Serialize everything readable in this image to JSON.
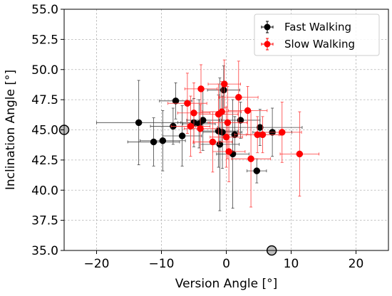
{
  "chart_data": {
    "type": "scatter",
    "title": "",
    "xlabel": "Version Angle [°]",
    "ylabel": "Inclination Angle [°]",
    "xlim": [
      -25,
      25
    ],
    "ylim": [
      35,
      55
    ],
    "xticks": [
      -20,
      -10,
      0,
      10,
      20
    ],
    "yticks": [
      35.0,
      37.5,
      40.0,
      42.5,
      45.0,
      47.5,
      50.0,
      52.5,
      55.0
    ],
    "xtick_labels": [
      "−20",
      "−10",
      "0",
      "10",
      "20"
    ],
    "ytick_labels": [
      "35.0",
      "37.5",
      "40.0",
      "42.5",
      "45.0",
      "47.5",
      "50.0",
      "52.5",
      "55.0"
    ],
    "grid": true,
    "legend_position": "top-right",
    "reference_points": [
      {
        "x": -25,
        "y": 45,
        "color": "#bfbfbf"
      },
      {
        "x": 7,
        "y": 35,
        "color": "#bfbfbf"
      }
    ],
    "series": [
      {
        "name": "Fast Walking",
        "color": "#000000",
        "points": [
          {
            "x": -13.5,
            "y": 45.6,
            "xerr": 6.5,
            "yerr": 3.5
          },
          {
            "x": -11.2,
            "y": 44.0,
            "xerr": 4.0,
            "yerr": 2.0
          },
          {
            "x": -9.8,
            "y": 44.1,
            "xerr": 3.5,
            "yerr": 2.5
          },
          {
            "x": -8.2,
            "y": 45.3,
            "xerr": 3.5,
            "yerr": 1.5
          },
          {
            "x": -7.8,
            "y": 47.4,
            "xerr": 2.5,
            "yerr": 1.5
          },
          {
            "x": -6.8,
            "y": 44.5,
            "xerr": 3.0,
            "yerr": 2.5
          },
          {
            "x": -5.0,
            "y": 45.6,
            "xerr": 2.5,
            "yerr": 2.0
          },
          {
            "x": -4.2,
            "y": 45.5,
            "xerr": 2.5,
            "yerr": 2.0
          },
          {
            "x": -3.6,
            "y": 45.8,
            "xerr": 2.5,
            "yerr": 2.5
          },
          {
            "x": -1.2,
            "y": 44.9,
            "xerr": 3.0,
            "yerr": 3.0
          },
          {
            "x": -1.0,
            "y": 43.8,
            "xerr": 3.0,
            "yerr": 5.5
          },
          {
            "x": -0.6,
            "y": 44.8,
            "xerr": 3.0,
            "yerr": 3.0
          },
          {
            "x": -0.4,
            "y": 48.3,
            "xerr": 2.5,
            "yerr": 2.0
          },
          {
            "x": 1.0,
            "y": 43.0,
            "xerr": 2.5,
            "yerr": 4.5
          },
          {
            "x": 1.3,
            "y": 44.6,
            "xerr": 2.5,
            "yerr": 1.5
          },
          {
            "x": 2.2,
            "y": 45.8,
            "xerr": 3.0,
            "yerr": 1.5
          },
          {
            "x": 4.7,
            "y": 41.6,
            "xerr": 1.5,
            "yerr": 1.0
          },
          {
            "x": 5.2,
            "y": 45.2,
            "xerr": 6.5,
            "yerr": 1.5
          },
          {
            "x": 7.1,
            "y": 44.8,
            "xerr": 3.0,
            "yerr": 2.0
          }
        ]
      },
      {
        "name": "Slow Walking",
        "color": "#ff0000",
        "points": [
          {
            "x": -6.0,
            "y": 47.2,
            "xerr": 3.0,
            "yerr": 2.5
          },
          {
            "x": -5.5,
            "y": 45.3,
            "xerr": 3.0,
            "yerr": 2.5
          },
          {
            "x": -5.0,
            "y": 46.4,
            "xerr": 2.5,
            "yerr": 2.5
          },
          {
            "x": -4.0,
            "y": 45.1,
            "xerr": 2.5,
            "yerr": 2.0
          },
          {
            "x": -3.9,
            "y": 48.4,
            "xerr": 2.5,
            "yerr": 2.0
          },
          {
            "x": -2.1,
            "y": 44.0,
            "xerr": 3.0,
            "yerr": 2.5
          },
          {
            "x": -1.2,
            "y": 46.3,
            "xerr": 3.0,
            "yerr": 2.5
          },
          {
            "x": -0.7,
            "y": 46.5,
            "xerr": 3.0,
            "yerr": 2.5
          },
          {
            "x": -0.3,
            "y": 48.8,
            "xerr": 2.5,
            "yerr": 2.0
          },
          {
            "x": 0.0,
            "y": 44.4,
            "xerr": 2.5,
            "yerr": 2.5
          },
          {
            "x": 0.2,
            "y": 45.6,
            "xerr": 3.0,
            "yerr": 3.0
          },
          {
            "x": 0.4,
            "y": 43.2,
            "xerr": 2.5,
            "yerr": 2.5
          },
          {
            "x": 1.9,
            "y": 47.7,
            "xerr": 3.0,
            "yerr": 3.0
          },
          {
            "x": 3.3,
            "y": 46.6,
            "xerr": 3.0,
            "yerr": 2.0
          },
          {
            "x": 3.8,
            "y": 42.6,
            "xerr": 3.0,
            "yerr": 4.0
          },
          {
            "x": 4.8,
            "y": 44.6,
            "xerr": 3.5,
            "yerr": 1.5
          },
          {
            "x": 5.6,
            "y": 44.6,
            "xerr": 2.5,
            "yerr": 1.5
          },
          {
            "x": 8.6,
            "y": 44.8,
            "xerr": 3.0,
            "yerr": 2.5
          },
          {
            "x": 11.3,
            "y": 43.0,
            "xerr": 3.0,
            "yerr": 3.5
          }
        ]
      }
    ]
  }
}
